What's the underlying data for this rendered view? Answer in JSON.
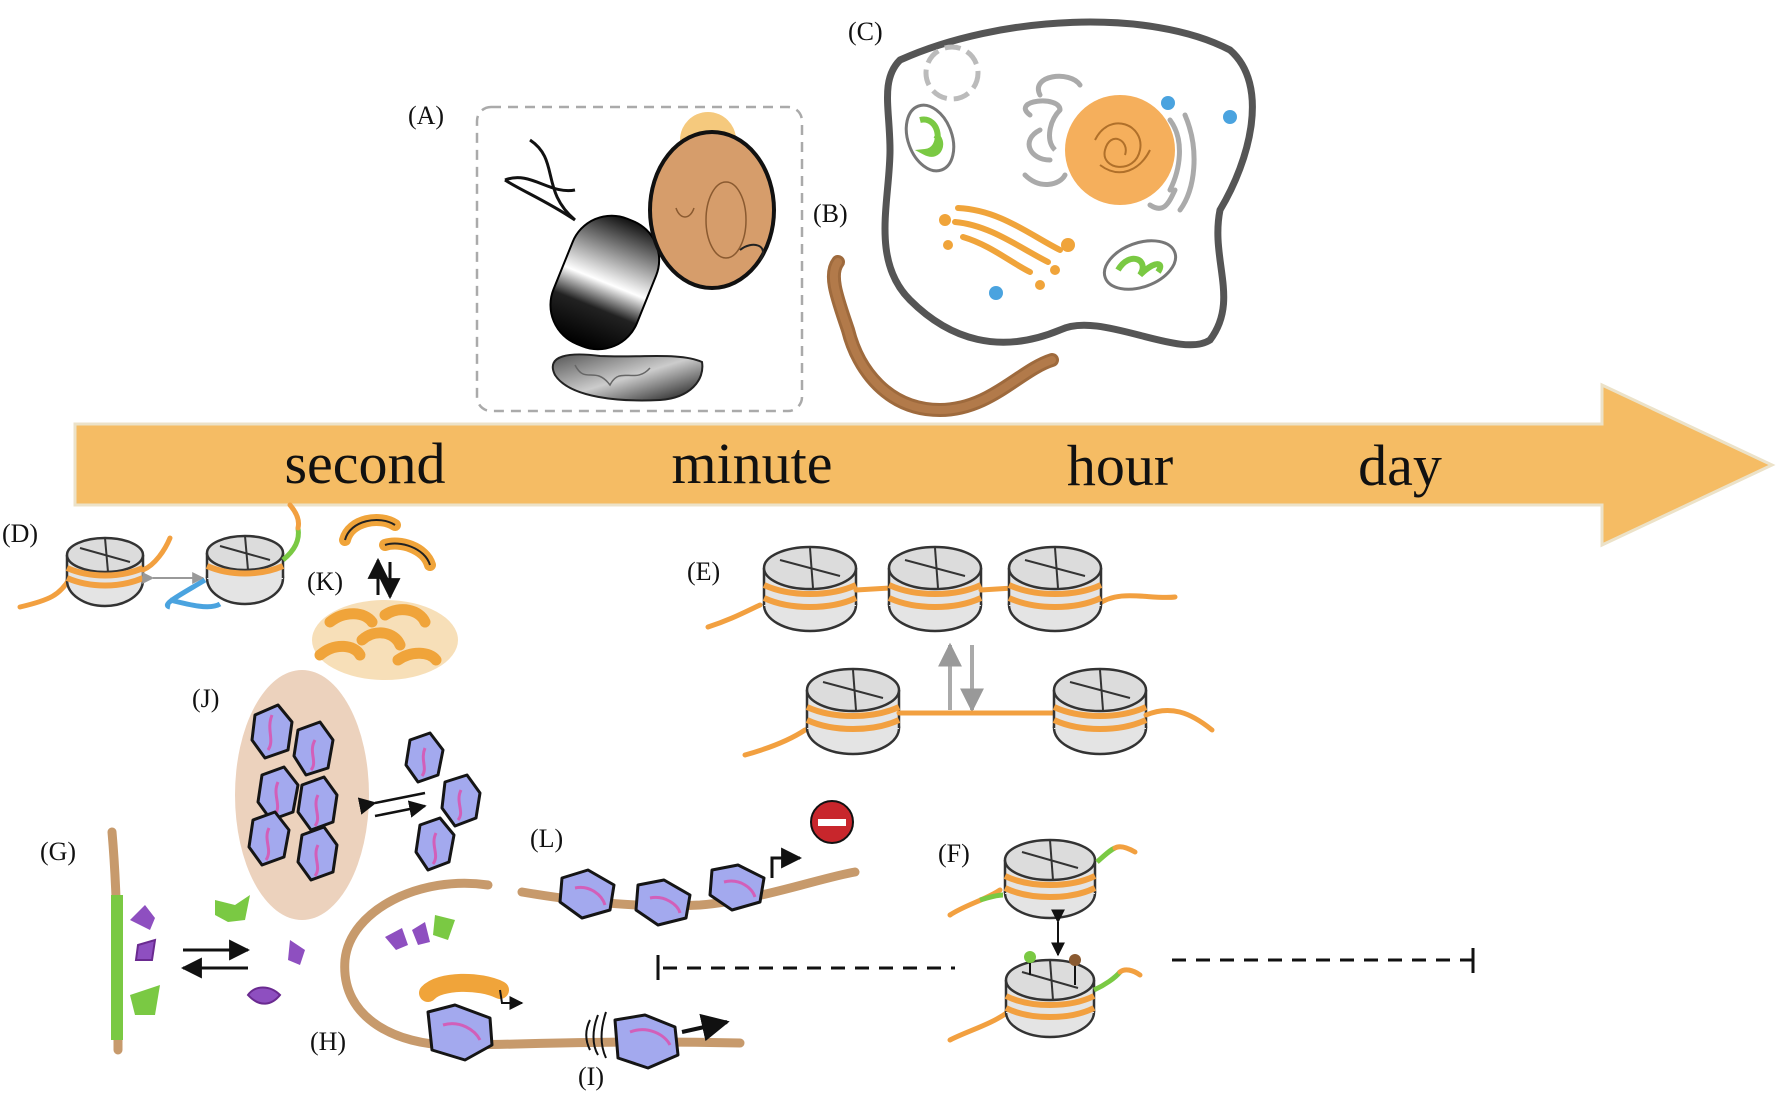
{
  "timeline": {
    "labels": [
      "second",
      "minute",
      "hour",
      "day"
    ],
    "color": "#f5bc64"
  },
  "panels": {
    "A": "(A)",
    "B": "(B)",
    "C": "(C)",
    "D": "(D)",
    "E": "(E)",
    "F": "(F)",
    "G": "(G)",
    "H": "(H)",
    "I": "(I)",
    "J": "(J)",
    "K": "(K)",
    "L": "(L)"
  },
  "colors": {
    "dna": "#f2a040",
    "chromatin": "#c79a6c",
    "protein": "#a3a9ee",
    "protein_accent": "#d25fb9",
    "condensate": "#ecd2bd",
    "green_mark": "#7ac943",
    "purple_mark": "#8e4fc0",
    "stop_sign": "#c8262c",
    "nucleus": "#f4a64a",
    "mitochondria": "#7ac943",
    "vesicle": "#4aa3df"
  }
}
